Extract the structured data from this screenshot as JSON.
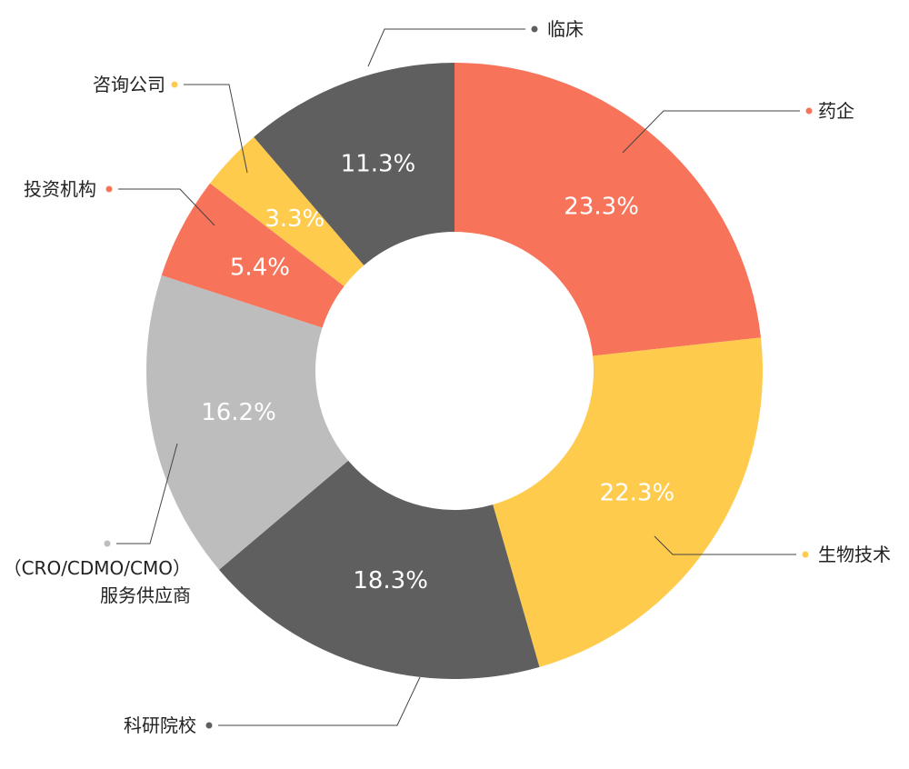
{
  "chart_data": {
    "type": "donut",
    "categories": [
      "药企",
      "生物技术",
      "科研院校",
      "（CRO/CDMO/CMO）\n服务供应商",
      "投资机构",
      "咨询公司",
      "临床"
    ],
    "values": [
      23.3,
      22.3,
      18.3,
      16.2,
      5.4,
      3.3,
      11.3
    ],
    "value_labels": [
      "23.3%",
      "22.3%",
      "18.3%",
      "16.2%",
      "5.4%",
      "3.3%",
      "11.3%"
    ],
    "colors": [
      "#F7735A",
      "#FECB4C",
      "#5F5F5F",
      "#BDBDBD",
      "#F7735A",
      "#FECB4C",
      "#5F5F5F"
    ]
  }
}
